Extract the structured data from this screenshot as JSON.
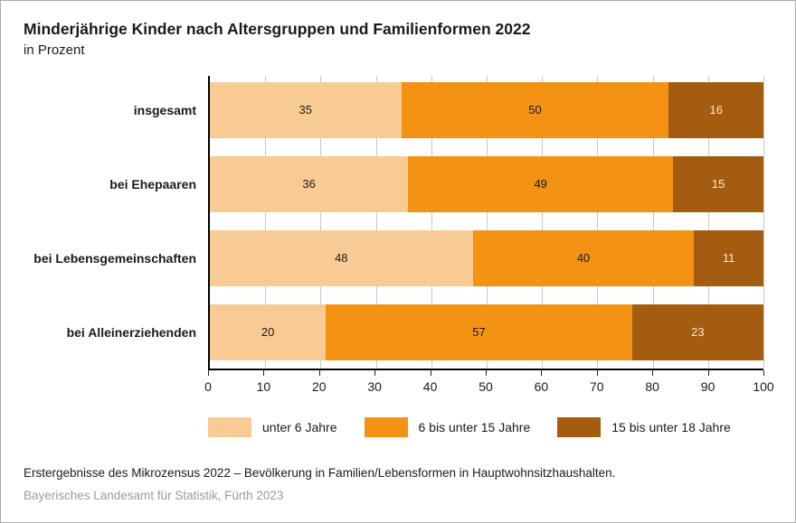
{
  "title": "Minderjährige Kinder nach Altersgruppen und Familienformen 2022",
  "subtitle": "in Prozent",
  "chart_data": {
    "type": "bar",
    "orientation": "horizontal",
    "stacked": true,
    "title": "Minderjährige Kinder nach Altersgruppen und Familienformen 2022",
    "subtitle": "in Prozent",
    "categories": [
      "insgesamt",
      "bei Ehepaaren",
      "bei Lebensgemeinschaften",
      "bei Alleinerziehenden"
    ],
    "series": [
      {
        "name": "unter 6 Jahre",
        "color": "#f9cb94",
        "text_color": "#1a1a1a",
        "values": [
          35,
          36,
          48,
          20
        ]
      },
      {
        "name": "6 bis unter 15 Jahre",
        "color": "#f39213",
        "text_color": "#1a1a1a",
        "values": [
          50,
          49,
          40,
          57
        ]
      },
      {
        "name": "15 bis unter 18 Jahre",
        "color": "#a35c10",
        "text_color": "#faebcd",
        "values": [
          16,
          15,
          11,
          23
        ]
      }
    ],
    "xlim": [
      0,
      100
    ],
    "xticks": [
      0,
      10,
      20,
      30,
      40,
      50,
      60,
      70,
      80,
      90,
      100
    ],
    "grid": true,
    "legend_position": "bottom"
  },
  "colors": {
    "grid_line": "#c9c9c9",
    "axis_line": "#000000",
    "page_border": "#ababab",
    "footer_publisher_text": "#9b9b9b"
  },
  "footer": {
    "source": "Erstergebnisse des Mikrozensus 2022 – Bevölkerung in Familien/Lebensformen in Hauptwohnsitzhaushalten.",
    "publisher": "Bayerisches Landesamt für Statistik, Fürth 2023"
  }
}
